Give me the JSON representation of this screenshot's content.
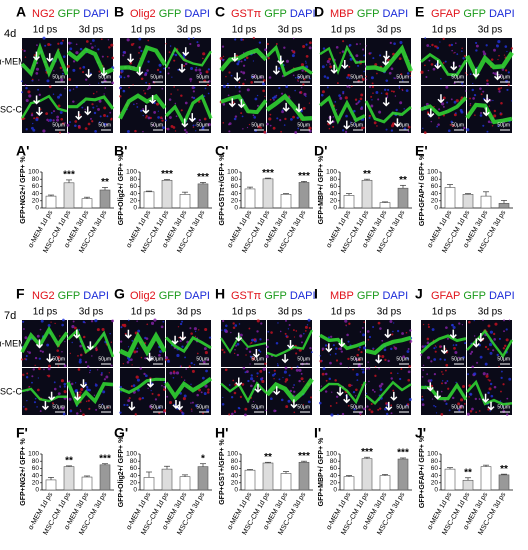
{
  "rows": [
    {
      "label": "4d",
      "conditions": [
        "α-MEM",
        "MSC-CM"
      ]
    },
    {
      "label": "7d",
      "conditions": [
        "α-MEM",
        "MSC-CM"
      ]
    }
  ],
  "panels": [
    {
      "label": "A",
      "stains": [
        {
          "text": "NG2",
          "color": "#e0121a"
        },
        {
          "text": "GFP",
          "color": "#1a9a1a"
        },
        {
          "text": "DAPI",
          "color": "#1a2ad8"
        }
      ],
      "timepoints": [
        "1d ps",
        "3d ps"
      ],
      "scale_bar": "50μm"
    },
    {
      "label": "B",
      "stains": [
        {
          "text": "Olig2",
          "color": "#e0121a"
        },
        {
          "text": "GFP",
          "color": "#1a9a1a"
        },
        {
          "text": "DAPI",
          "color": "#1a2ad8"
        }
      ],
      "timepoints": [
        "1d ps",
        "3d ps"
      ],
      "scale_bar": "50μm"
    },
    {
      "label": "C",
      "stains": [
        {
          "text": "GSTπ",
          "color": "#e0121a"
        },
        {
          "text": "GFP",
          "color": "#1a9a1a"
        },
        {
          "text": "DAPI",
          "color": "#1a2ad8"
        }
      ],
      "timepoints": [
        "1d ps",
        "3d ps"
      ],
      "scale_bar": "50μm"
    },
    {
      "label": "D",
      "stains": [
        {
          "text": "MBP",
          "color": "#e0121a"
        },
        {
          "text": "GFP",
          "color": "#1a9a1a"
        },
        {
          "text": "DAPI",
          "color": "#1a2ad8"
        }
      ],
      "timepoints": [
        "1d ps",
        "3d ps"
      ],
      "scale_bar": "50μm"
    },
    {
      "label": "E",
      "stains": [
        {
          "text": "GFAP",
          "color": "#e0121a"
        },
        {
          "text": "GFP",
          "color": "#1a9a1a"
        },
        {
          "text": "DAPI",
          "color": "#1a2ad8"
        }
      ],
      "timepoints": [
        "1d ps",
        "3d ps"
      ],
      "scale_bar": "50μm"
    },
    {
      "label": "F",
      "stains": [
        {
          "text": "NG2",
          "color": "#e0121a"
        },
        {
          "text": "GFP",
          "color": "#1a9a1a"
        },
        {
          "text": "DAPI",
          "color": "#1a2ad8"
        }
      ],
      "timepoints": [
        "1d ps",
        "3d ps"
      ],
      "scale_bar": "50μm"
    },
    {
      "label": "G",
      "stains": [
        {
          "text": "Olig2",
          "color": "#e0121a"
        },
        {
          "text": "GFP",
          "color": "#1a9a1a"
        },
        {
          "text": "DAPI",
          "color": "#1a2ad8"
        }
      ],
      "timepoints": [
        "1d ps",
        "3d ps"
      ],
      "scale_bar": "50μm"
    },
    {
      "label": "H",
      "stains": [
        {
          "text": "GSTπ",
          "color": "#e0121a"
        },
        {
          "text": "GFP",
          "color": "#1a9a1a"
        },
        {
          "text": "DAPI",
          "color": "#1a2ad8"
        }
      ],
      "timepoints": [
        "1d ps",
        "3d ps"
      ],
      "scale_bar": "50μm"
    },
    {
      "label": "I",
      "stains": [
        {
          "text": "MBP",
          "color": "#e0121a"
        },
        {
          "text": "GFP",
          "color": "#1a9a1a"
        },
        {
          "text": "DAPI",
          "color": "#1a2ad8"
        }
      ],
      "timepoints": [
        "1d ps",
        "3d ps"
      ],
      "scale_bar": "50μm"
    },
    {
      "label": "J",
      "stains": [
        {
          "text": "GFAP",
          "color": "#e0121a"
        },
        {
          "text": "GFP",
          "color": "#1a9a1a"
        },
        {
          "text": "DAPI",
          "color": "#1a2ad8"
        }
      ],
      "timepoints": [
        "1d ps",
        "3d ps"
      ],
      "scale_bar": "50μm"
    }
  ],
  "chart_data": [
    {
      "type": "bar",
      "label": "A'",
      "y_label": "GFP+NG2+/ GFP+ %",
      "categories": [
        "α-MEM 1d ps",
        "MSC-CM 1d ps",
        "α-MEM 3d ps",
        "MSC-CM 3d ps"
      ],
      "values": [
        33,
        70,
        26,
        50
      ],
      "errors": [
        3,
        8,
        4,
        7
      ],
      "annotations": [
        null,
        "***",
        null,
        "**"
      ],
      "colors": [
        "#ffffff",
        "#dddddd",
        "#ffffff",
        "#999999"
      ],
      "ylim": [
        0,
        100
      ],
      "yticks": [
        0,
        20,
        40,
        60,
        80,
        100
      ]
    },
    {
      "type": "bar",
      "label": "B'",
      "y_label": "GFP+Olig2+/ GFP+ %",
      "categories": [
        "α-MEM 1d ps",
        "MSC-CM 1d ps",
        "α-MEM 3d ps",
        "MSC-CM 3d ps"
      ],
      "values": [
        45,
        77,
        38,
        67
      ],
      "errors": [
        2,
        2,
        6,
        4
      ],
      "annotations": [
        null,
        "***",
        null,
        "***"
      ],
      "colors": [
        "#ffffff",
        "#dddddd",
        "#ffffff",
        "#999999"
      ],
      "ylim": [
        0,
        100
      ],
      "yticks": [
        0,
        20,
        40,
        60,
        80,
        100
      ]
    },
    {
      "type": "bar",
      "label": "C'",
      "y_label": "GFP+GSTπ+/GFP+ %",
      "categories": [
        "α-MEM 1d ps",
        "MSC-CM 1d ps",
        "α-MEM 3d ps",
        "MSC-CM 3d ps"
      ],
      "values": [
        53,
        81,
        38,
        71
      ],
      "errors": [
        5,
        2,
        2,
        3
      ],
      "annotations": [
        null,
        "***",
        null,
        "***"
      ],
      "colors": [
        "#ffffff",
        "#dddddd",
        "#ffffff",
        "#999999"
      ],
      "ylim": [
        0,
        100
      ],
      "yticks": [
        0,
        20,
        40,
        60,
        80,
        100
      ]
    },
    {
      "type": "bar",
      "label": "D'",
      "y_label": "GFP+MBP+/ GFP+ %",
      "categories": [
        "α-MEM 1d ps",
        "MSC-CM 1d ps",
        "α-MEM 3d ps",
        "MSC-CM 3d ps"
      ],
      "values": [
        35,
        77,
        15,
        55
      ],
      "errors": [
        5,
        3,
        2,
        8
      ],
      "annotations": [
        null,
        "**",
        null,
        "**"
      ],
      "colors": [
        "#ffffff",
        "#dddddd",
        "#ffffff",
        "#999999"
      ],
      "ylim": [
        0,
        100
      ],
      "yticks": [
        0,
        20,
        40,
        60,
        80,
        100
      ]
    },
    {
      "type": "bar",
      "label": "E'",
      "y_label": "GFP+GFAP+/ GFP+ %",
      "categories": [
        "α-MEM 1d ps",
        "MSC-CM 1d ps",
        "α-MEM 3d ps",
        "MSC-CM 3d ps"
      ],
      "values": [
        57,
        38,
        33,
        13
      ],
      "errors": [
        8,
        2,
        12,
        8
      ],
      "annotations": [
        null,
        null,
        null,
        null
      ],
      "colors": [
        "#ffffff",
        "#dddddd",
        "#ffffff",
        "#999999"
      ],
      "ylim": [
        0,
        100
      ],
      "yticks": [
        0,
        20,
        40,
        60,
        80,
        100
      ]
    },
    {
      "type": "bar",
      "label": "F'",
      "y_label": "GFP+NG2+/ GFP+ %",
      "categories": [
        "α-MEM 1d ps",
        "MSC-CM 1d ps",
        "α-MEM 3d ps",
        "MSC-CM 3d ps"
      ],
      "values": [
        28,
        65,
        36,
        70
      ],
      "errors": [
        7,
        2,
        3,
        3
      ],
      "annotations": [
        null,
        "**",
        null,
        "***"
      ],
      "colors": [
        "#ffffff",
        "#dddddd",
        "#ffffff",
        "#999999"
      ],
      "ylim": [
        0,
        100
      ],
      "yticks": [
        0,
        20,
        40,
        60,
        80,
        100
      ]
    },
    {
      "type": "bar",
      "label": "G'",
      "y_label": "GFP+Olig2+/ GFP+ %",
      "categories": [
        "α-MEM 1d ps",
        "MSC-CM 1d ps",
        "α-MEM 3d ps",
        "MSC-CM 3d ps"
      ],
      "values": [
        35,
        58,
        37,
        65
      ],
      "errors": [
        15,
        8,
        5,
        8
      ],
      "annotations": [
        null,
        null,
        null,
        "*"
      ],
      "colors": [
        "#ffffff",
        "#dddddd",
        "#ffffff",
        "#999999"
      ],
      "ylim": [
        0,
        100
      ],
      "yticks": [
        0,
        20,
        40,
        60,
        80,
        100
      ]
    },
    {
      "type": "bar",
      "label": "H'",
      "y_label": "GFP+GST+/GFP+ %",
      "categories": [
        "α-MEM 1d ps",
        "MSC-CM 1d ps",
        "α-MEM 3d ps",
        "MSC-CM 3d ps"
      ],
      "values": [
        55,
        75,
        46,
        77
      ],
      "errors": [
        2,
        2,
        5,
        3
      ],
      "annotations": [
        null,
        "**",
        null,
        "***"
      ],
      "colors": [
        "#ffffff",
        "#dddddd",
        "#ffffff",
        "#999999"
      ],
      "ylim": [
        0,
        100
      ],
      "yticks": [
        0,
        20,
        40,
        60,
        80,
        100
      ]
    },
    {
      "type": "bar",
      "label": "I'",
      "y_label": "GFP+MBP+/ GFP+ %",
      "categories": [
        "α-MEM 1d ps",
        "MSC-CM 1d ps",
        "α-MEM 3d ps",
        "MSC-CM 3d ps"
      ],
      "values": [
        37,
        87,
        40,
        86
      ],
      "errors": [
        3,
        4,
        3,
        3
      ],
      "annotations": [
        null,
        "***",
        null,
        "***"
      ],
      "colors": [
        "#ffffff",
        "#dddddd",
        "#ffffff",
        "#999999"
      ],
      "ylim": [
        0,
        100
      ],
      "yticks": [
        0,
        20,
        40,
        60,
        80,
        100
      ]
    },
    {
      "type": "bar",
      "label": "J'",
      "y_label": "GFP+GFAP+/ GFP+ %",
      "categories": [
        "α-MEM 1d ps",
        "MSC-CM 1d ps",
        "α-MEM 3d ps",
        "MSC-CM 3d ps"
      ],
      "values": [
        58,
        27,
        65,
        42
      ],
      "errors": [
        4,
        7,
        4,
        2
      ],
      "annotations": [
        null,
        "**",
        null,
        "**"
      ],
      "colors": [
        "#ffffff",
        "#dddddd",
        "#ffffff",
        "#999999"
      ],
      "ylim": [
        0,
        100
      ],
      "yticks": [
        0,
        20,
        40,
        60,
        80,
        100
      ]
    }
  ]
}
